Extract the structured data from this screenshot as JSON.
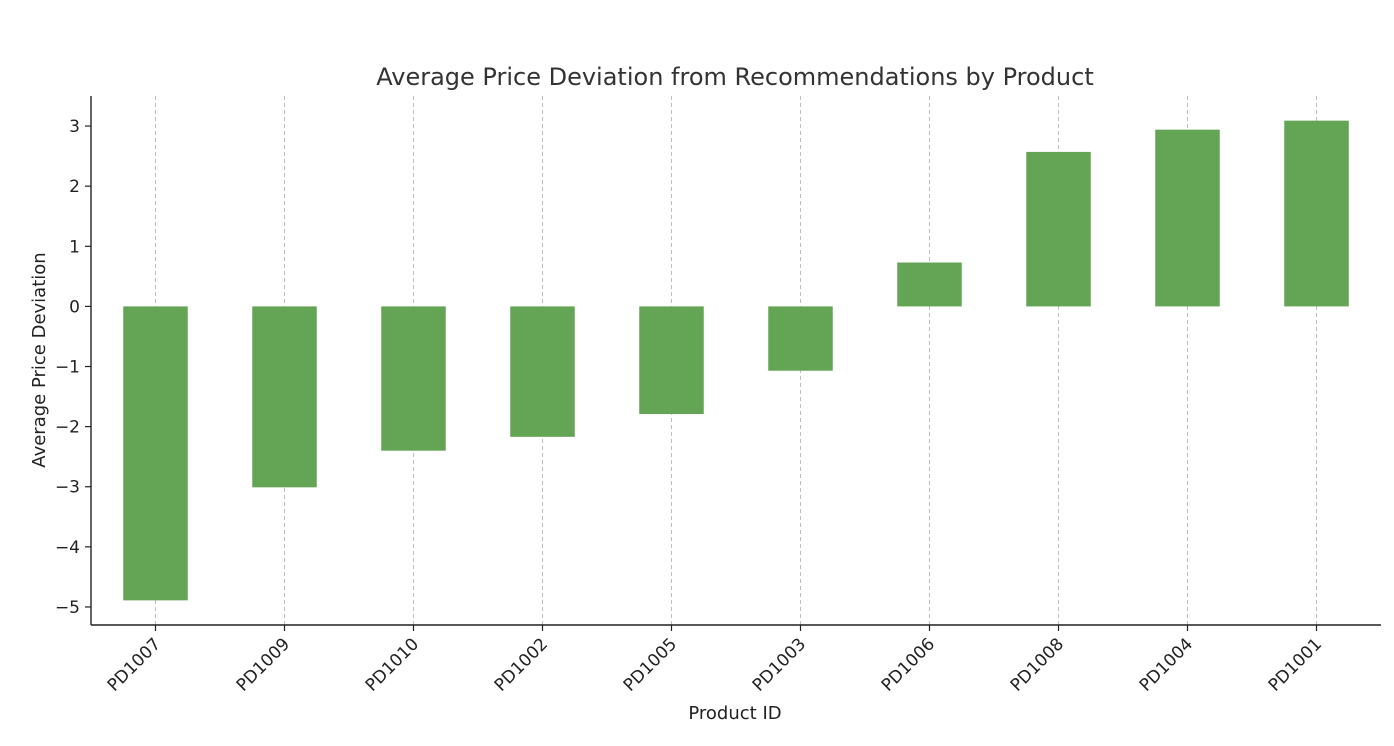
{
  "chart_data": {
    "type": "bar",
    "title": "Average Price Deviation from Recommendations by Product",
    "xlabel": "Product ID",
    "ylabel": "Average Price Deviation",
    "categories": [
      "PD1007",
      "PD1009",
      "PD1010",
      "PD1002",
      "PD1005",
      "PD1003",
      "PD1006",
      "PD1008",
      "PD1004",
      "PD1001"
    ],
    "values": [
      -4.89,
      -3.01,
      -2.4,
      -2.17,
      -1.79,
      -1.07,
      0.73,
      2.57,
      2.94,
      3.09
    ],
    "ylim": [
      -5.3,
      3.5
    ],
    "yticks": [
      -5,
      -4,
      -3,
      -2,
      -1,
      0,
      1,
      2,
      3
    ],
    "ytick_labels": [
      "−5",
      "−4",
      "−3",
      "−2",
      "−1",
      "0",
      "1",
      "2",
      "3"
    ],
    "bar_color": "#64a455",
    "grid": "x-dashed",
    "legend": "none"
  }
}
